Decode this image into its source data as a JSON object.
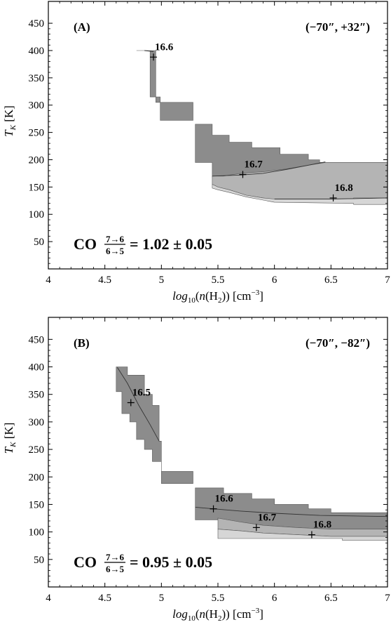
{
  "chart_data": [
    {
      "type": "area",
      "panel_label": "(A)",
      "position_label": "(−70″, +32″)",
      "xlabel": "log10(n(H2)) [cm−3]",
      "ylabel": "T_K [K]",
      "xlim": [
        4,
        7
      ],
      "ylim": [
        0,
        490
      ],
      "x_ticks": [
        "4",
        "4.5",
        "5",
        "5.5",
        "6",
        "6.5",
        "7"
      ],
      "y_ticks": [
        "50",
        "100",
        "150",
        "200",
        "250",
        "300",
        "350",
        "400",
        "450"
      ],
      "ratio": {
        "species": "CO",
        "numerator": "7→6",
        "denominator": "6→5",
        "value_text": "= 1.02 ± 0.05"
      },
      "points": [
        {
          "x": 4.93,
          "y": 388,
          "label": "16.6"
        },
        {
          "x": 5.72,
          "y": 173,
          "label": "16.7"
        },
        {
          "x": 6.52,
          "y": 130,
          "label": "16.8"
        }
      ],
      "regions": [
        {
          "shade": "dark",
          "polygon": [
            [
              4.78,
              400
            ],
            [
              4.95,
              400
            ],
            [
              4.95,
              305
            ],
            [
              5.28,
              305
            ],
            [
              5.28,
              272
            ],
            [
              4.99,
              272
            ],
            [
              4.99,
              315
            ],
            [
              4.9,
              315
            ],
            [
              4.9,
              400
            ],
            [
              4.78,
              400
            ]
          ]
        },
        {
          "shade": "dark",
          "polygon": [
            [
              5.3,
              265
            ],
            [
              5.45,
              265
            ],
            [
              5.45,
              245
            ],
            [
              5.6,
              245
            ],
            [
              5.6,
              232
            ],
            [
              5.8,
              232
            ],
            [
              5.8,
              222
            ],
            [
              6.05,
              222
            ],
            [
              6.05,
              210
            ],
            [
              6.3,
              210
            ],
            [
              6.3,
              200
            ],
            [
              6.4,
              200
            ],
            [
              6.4,
              195
            ],
            [
              7.0,
              195
            ],
            [
              7.0,
              150
            ],
            [
              6.4,
              150
            ],
            [
              6.4,
              170
            ],
            [
              6.2,
              173
            ],
            [
              6.0,
              175
            ],
            [
              5.8,
              175
            ],
            [
              5.6,
              172
            ],
            [
              5.5,
              168
            ],
            [
              5.45,
              168
            ],
            [
              5.45,
              195
            ],
            [
              5.3,
              195
            ]
          ]
        },
        {
          "shade": "mid",
          "polygon": [
            [
              5.45,
              170
            ],
            [
              5.55,
              170
            ],
            [
              5.7,
              175
            ],
            [
              5.9,
              178
            ],
            [
              6.1,
              183
            ],
            [
              6.3,
              190
            ],
            [
              6.45,
              195
            ],
            [
              7.0,
              195
            ],
            [
              7.0,
              130
            ],
            [
              6.7,
              130
            ],
            [
              6.7,
              125
            ],
            [
              6.0,
              125
            ],
            [
              5.9,
              130
            ],
            [
              5.75,
              135
            ],
            [
              5.6,
              145
            ],
            [
              5.5,
              150
            ],
            [
              5.45,
              155
            ]
          ]
        },
        {
          "shade": "light",
          "polygon": [
            [
              5.45,
              155
            ],
            [
              5.5,
              150
            ],
            [
              5.6,
              145
            ],
            [
              5.75,
              135
            ],
            [
              5.9,
              130
            ],
            [
              6.0,
              128
            ],
            [
              6.5,
              128
            ],
            [
              7.0,
              130
            ],
            [
              7.0,
              118
            ],
            [
              6.7,
              118
            ],
            [
              6.7,
              120
            ],
            [
              6.0,
              122
            ],
            [
              5.9,
              126
            ],
            [
              5.75,
              132
            ],
            [
              5.6,
              140
            ],
            [
              5.5,
              145
            ],
            [
              5.45,
              148
            ]
          ]
        }
      ],
      "contours": [
        [
          [
            4.85,
            400
          ],
          [
            4.93,
            398
          ]
        ],
        [
          [
            5.45,
            170
          ],
          [
            5.7,
            172
          ],
          [
            5.9,
            175
          ],
          [
            6.1,
            182
          ],
          [
            6.3,
            190
          ],
          [
            6.45,
            196
          ]
        ],
        [
          [
            6.0,
            128
          ],
          [
            6.5,
            128
          ],
          [
            7.0,
            130
          ]
        ]
      ]
    },
    {
      "type": "area",
      "panel_label": "(B)",
      "position_label": "(−70″, −82″)",
      "xlabel": "log10(n(H2)) [cm−3]",
      "ylabel": "T_K [K]",
      "xlim": [
        4,
        7
      ],
      "ylim": [
        0,
        490
      ],
      "x_ticks": [
        "4",
        "4.5",
        "5",
        "5.5",
        "6",
        "6.5",
        "7"
      ],
      "y_ticks": [
        "50",
        "100",
        "150",
        "200",
        "250",
        "300",
        "350",
        "400",
        "450"
      ],
      "ratio": {
        "species": "CO",
        "numerator": "7→6",
        "denominator": "6→5",
        "value_text": "= 0.95 ± 0.05"
      },
      "points": [
        {
          "x": 4.73,
          "y": 335,
          "label": "16.5"
        },
        {
          "x": 5.46,
          "y": 142,
          "label": "16.6"
        },
        {
          "x": 5.84,
          "y": 108,
          "label": "16.7"
        },
        {
          "x": 6.33,
          "y": 95,
          "label": "16.8"
        }
      ],
      "regions": [
        {
          "shade": "dark",
          "polygon": [
            [
              4.6,
              400
            ],
            [
              4.7,
              400
            ],
            [
              4.7,
              385
            ],
            [
              4.85,
              385
            ],
            [
              4.85,
              350
            ],
            [
              4.92,
              350
            ],
            [
              4.92,
              330
            ],
            [
              4.98,
              330
            ],
            [
              4.98,
              265
            ],
            [
              5.0,
              265
            ],
            [
              5.0,
              210
            ],
            [
              5.28,
              210
            ],
            [
              5.28,
              188
            ],
            [
              5.0,
              188
            ],
            [
              5.0,
              228
            ],
            [
              4.92,
              228
            ],
            [
              4.92,
              250
            ],
            [
              4.85,
              250
            ],
            [
              4.85,
              268
            ],
            [
              4.78,
              268
            ],
            [
              4.78,
              300
            ],
            [
              4.72,
              300
            ],
            [
              4.72,
              315
            ],
            [
              4.65,
              315
            ],
            [
              4.65,
              355
            ],
            [
              4.6,
              355
            ]
          ]
        },
        {
          "shade": "dark",
          "polygon": [
            [
              5.3,
              180
            ],
            [
              5.55,
              180
            ],
            [
              5.55,
              170
            ],
            [
              5.8,
              170
            ],
            [
              5.8,
              160
            ],
            [
              6.0,
              160
            ],
            [
              6.0,
              150
            ],
            [
              6.3,
              150
            ],
            [
              6.3,
              142
            ],
            [
              6.5,
              142
            ],
            [
              6.5,
              135
            ],
            [
              7.0,
              135
            ],
            [
              7.0,
              105
            ],
            [
              6.5,
              105
            ],
            [
              6.2,
              108
            ],
            [
              5.9,
              112
            ],
            [
              5.7,
              118
            ],
            [
              5.5,
              125
            ],
            [
              5.5,
              122
            ],
            [
              5.3,
              122
            ]
          ]
        },
        {
          "shade": "mid",
          "polygon": [
            [
              5.5,
              125
            ],
            [
              5.7,
              118
            ],
            [
              5.9,
              112
            ],
            [
              6.2,
              108
            ],
            [
              6.5,
              105
            ],
            [
              7.0,
              105
            ],
            [
              7.0,
              92
            ],
            [
              6.5,
              92
            ],
            [
              6.2,
              95
            ],
            [
              5.9,
              98
            ],
            [
              5.7,
              102
            ],
            [
              5.5,
              105
            ]
          ]
        },
        {
          "shade": "light",
          "polygon": [
            [
              5.5,
              105
            ],
            [
              5.7,
              102
            ],
            [
              5.9,
              98
            ],
            [
              6.2,
              95
            ],
            [
              6.5,
              92
            ],
            [
              7.0,
              92
            ],
            [
              7.0,
              85
            ],
            [
              6.6,
              85
            ],
            [
              6.6,
              88
            ],
            [
              5.5,
              88
            ]
          ]
        }
      ],
      "contours": [
        [
          [
            4.61,
            399
          ],
          [
            4.7,
            370
          ],
          [
            4.8,
            330
          ],
          [
            4.9,
            295
          ],
          [
            4.98,
            265
          ]
        ],
        [
          [
            5.3,
            145
          ],
          [
            5.46,
            142
          ],
          [
            5.7,
            138
          ],
          [
            6.0,
            134
          ],
          [
            6.4,
            130
          ],
          [
            7.0,
            128
          ]
        ]
      ]
    }
  ]
}
